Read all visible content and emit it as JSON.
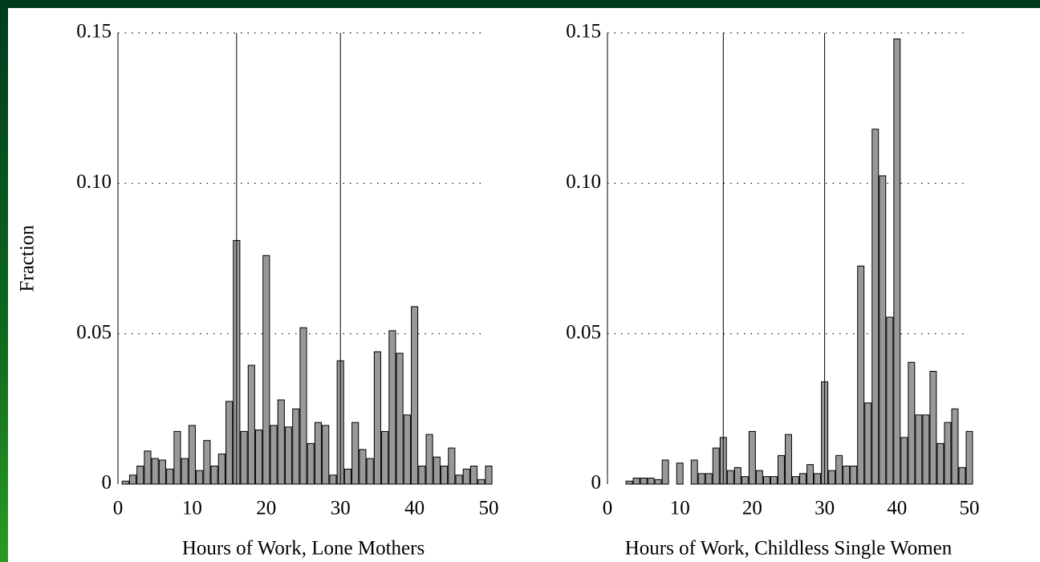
{
  "chart_data": [
    {
      "type": "bar",
      "ylabel": "Fraction",
      "xlabel": "Hours of Work, Lone Mothers",
      "x": [
        1,
        2,
        3,
        4,
        5,
        6,
        7,
        8,
        9,
        10,
        11,
        12,
        13,
        14,
        15,
        16,
        17,
        18,
        19,
        20,
        21,
        22,
        23,
        24,
        25,
        26,
        27,
        28,
        29,
        30,
        31,
        32,
        33,
        34,
        35,
        36,
        37,
        38,
        39,
        40,
        41,
        42,
        43,
        44,
        45,
        46,
        47,
        48,
        49,
        50
      ],
      "values": [
        0.001,
        0.003,
        0.006,
        0.011,
        0.0085,
        0.008,
        0.005,
        0.0175,
        0.0085,
        0.0195,
        0.0045,
        0.0145,
        0.006,
        0.01,
        0.0275,
        0.081,
        0.0175,
        0.0395,
        0.018,
        0.076,
        0.0195,
        0.028,
        0.019,
        0.025,
        0.052,
        0.0135,
        0.0205,
        0.0195,
        0.003,
        0.041,
        0.005,
        0.0205,
        0.0115,
        0.0085,
        0.044,
        0.0175,
        0.051,
        0.0435,
        0.023,
        0.059,
        0.006,
        0.0165,
        0.009,
        0.006,
        0.012,
        0.003,
        0.005,
        0.006,
        0.0015,
        0.006
      ],
      "color": "#999999",
      "vlines": [
        16,
        30
      ],
      "xlim": [
        0,
        50
      ],
      "xticks": [
        0,
        10,
        20,
        30,
        40,
        50
      ],
      "ylim": [
        0,
        0.15
      ],
      "yticks": [
        0,
        0.05,
        {
          "value": 0.1,
          "label": "0.10"
        },
        0.15
      ],
      "grid": true
    },
    {
      "type": "bar",
      "xlabel": "Hours of Work, Childless Single Women",
      "x": [
        1,
        2,
        3,
        4,
        5,
        6,
        7,
        8,
        9,
        10,
        11,
        12,
        13,
        14,
        15,
        16,
        17,
        18,
        19,
        20,
        21,
        22,
        23,
        24,
        25,
        26,
        27,
        28,
        29,
        30,
        31,
        32,
        33,
        34,
        35,
        36,
        37,
        38,
        39,
        40,
        41,
        42,
        43,
        44,
        45,
        46,
        47,
        48,
        49,
        50
      ],
      "values": [
        0,
        0,
        0.001,
        0.002,
        0.002,
        0.002,
        0.0015,
        0.008,
        0,
        0.007,
        0,
        0.008,
        0.0035,
        0.0035,
        0.012,
        0.0155,
        0.0045,
        0.0055,
        0.0025,
        0.0175,
        0.0045,
        0.0025,
        0.0025,
        0.0095,
        0.0165,
        0.0025,
        0.0035,
        0.0065,
        0.0035,
        0.034,
        0.0045,
        0.0095,
        0.006,
        0.006,
        0.0725,
        0.027,
        0.118,
        0.1025,
        0.0555,
        0.148,
        0.0155,
        0.0405,
        0.023,
        0.023,
        0.0375,
        0.0135,
        0.0205,
        0.025,
        0.0055,
        0.0175
      ],
      "color": "#999999",
      "vlines": [
        16,
        30
      ],
      "xlim": [
        0,
        50
      ],
      "xticks": [
        0,
        10,
        20,
        30,
        40,
        50
      ],
      "ylim": [
        0,
        0.15
      ],
      "yticks": [
        0,
        0.05,
        {
          "value": 0.1,
          "label": "0.10"
        },
        0.15
      ],
      "grid": true
    }
  ]
}
